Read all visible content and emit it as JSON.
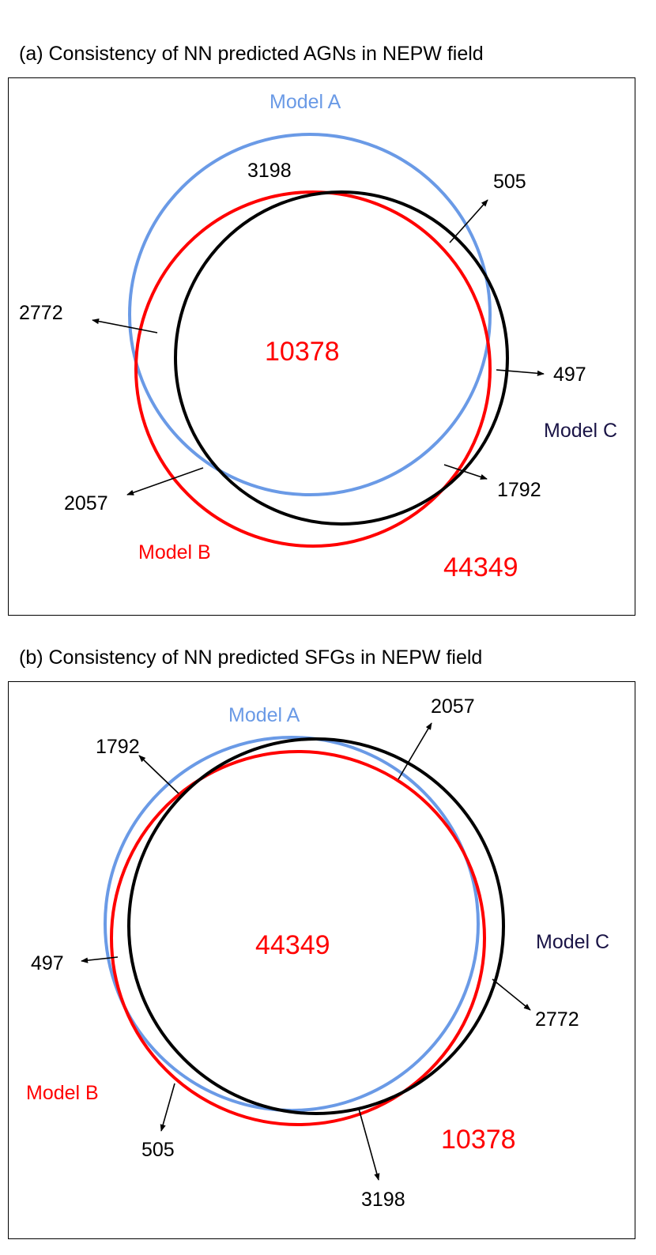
{
  "colors": {
    "model_a": "#6a9ae6",
    "model_b": "#ff0000",
    "model_c": "#000000",
    "model_c_label": "#1a1446",
    "arrow": "#000000"
  },
  "panel_a": {
    "title": "(a) Consistency of NN predicted AGNs in NEPW field",
    "model_a_label": "Model A",
    "model_b_label": "Model B",
    "model_c_label": "Model C",
    "center_count": "10378",
    "outside_count": "44349",
    "counts": {
      "a_only": "3198",
      "a_c": "505",
      "a_b": "2772",
      "c_only": "497",
      "b_only": "2057",
      "b_c": "1792"
    }
  },
  "panel_b": {
    "title": "(b) Consistency of NN predicted SFGs in NEPW field",
    "model_a_label": "Model A",
    "model_b_label": "Model B",
    "model_c_label": "Model C",
    "center_count": "44349",
    "outside_count": "10378",
    "counts": {
      "a_c": "2057",
      "a_b": "1792",
      "b_only": "497",
      "c_only": "2772",
      "a_only": "505",
      "b_c": "3198"
    }
  }
}
